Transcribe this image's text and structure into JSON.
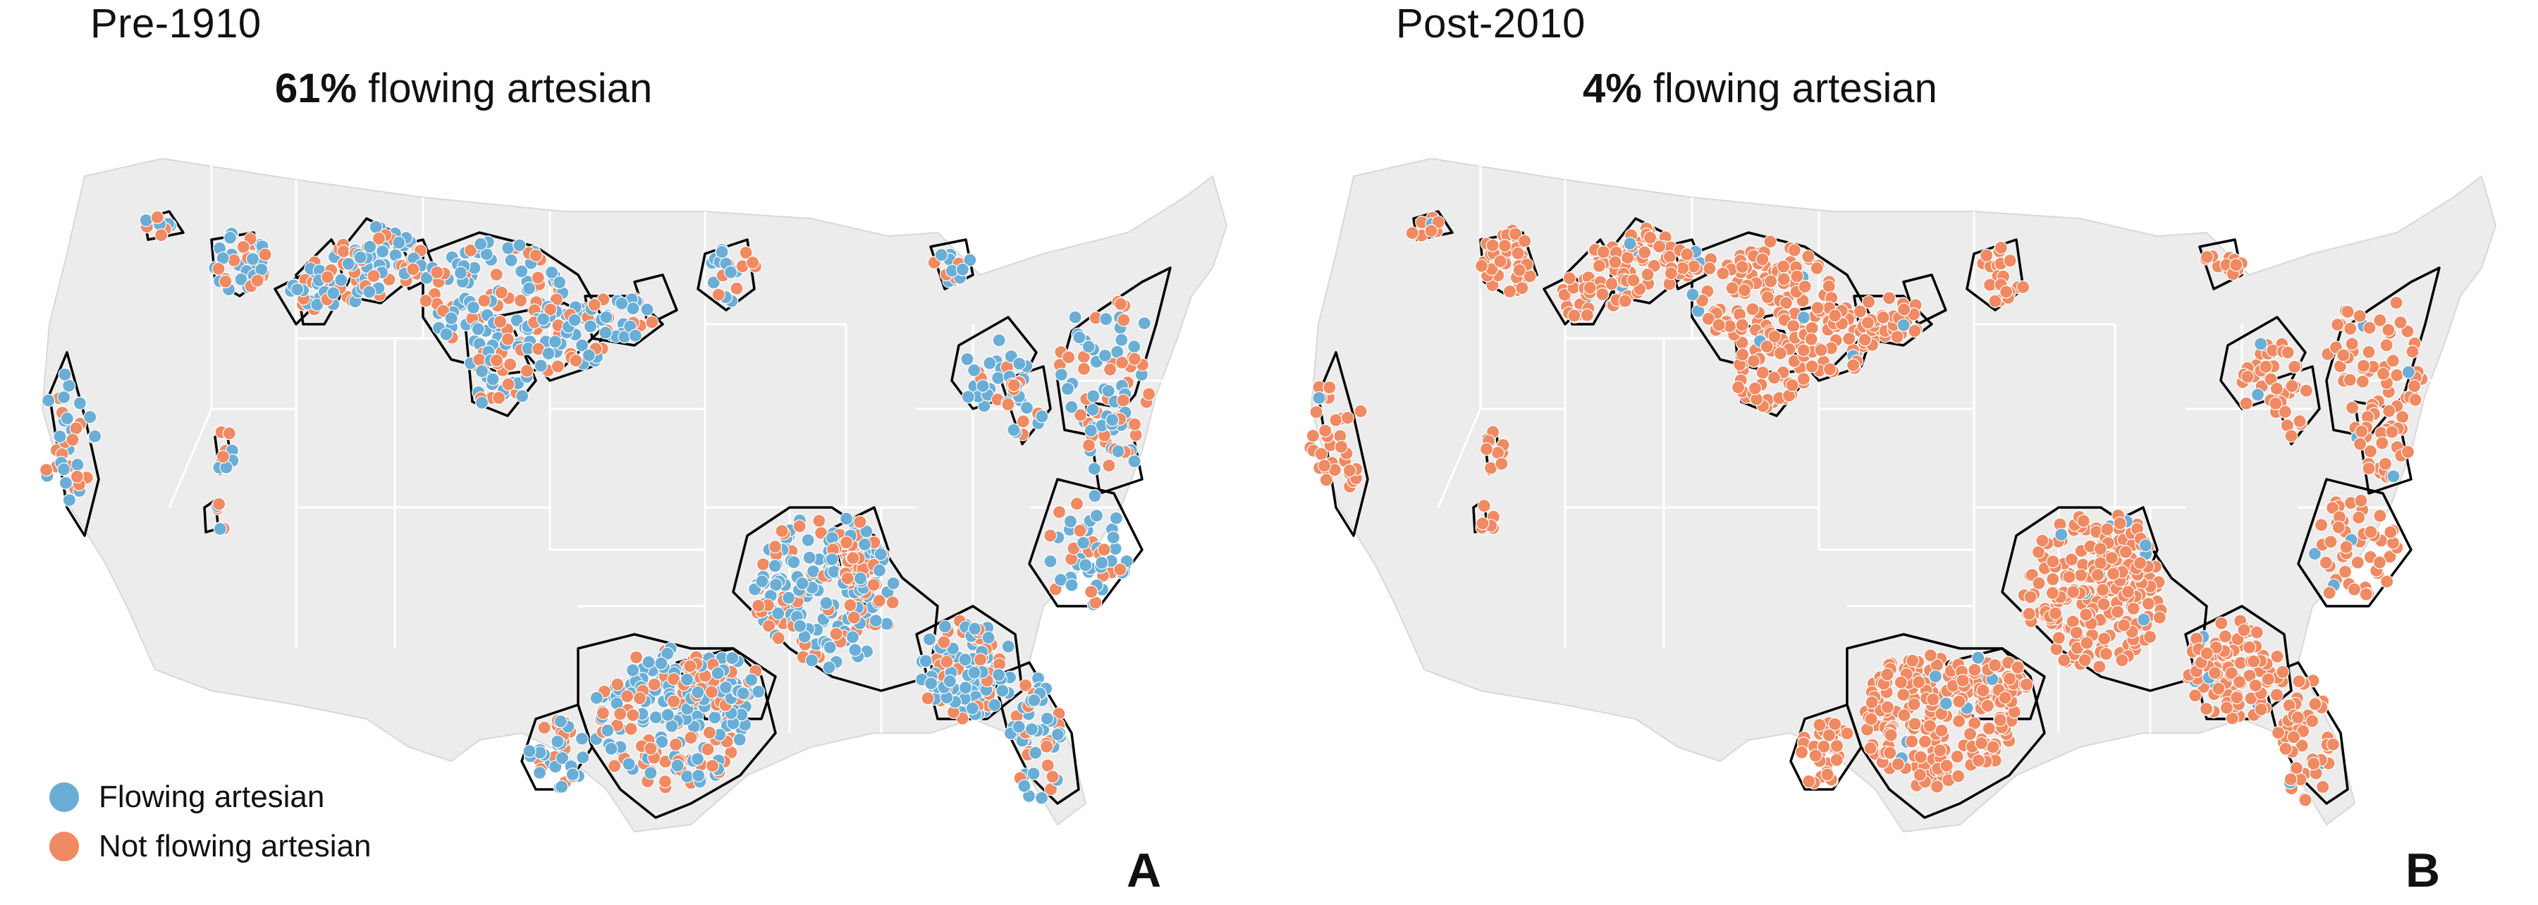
{
  "colors": {
    "flowing": "#6aaed6",
    "not_flowing": "#ef8a62",
    "land": "#ececec",
    "state_lines": "#ffffff",
    "aquifer_outline": "#000000"
  },
  "legend": {
    "flowing_label": "Flowing artesian",
    "not_flowing_label": "Not flowing artesian"
  },
  "panels": [
    {
      "era": "Pre-1910",
      "percent": "61%",
      "title_rest": " flowing artesian",
      "letter": "A",
      "flowing_share": 0.61
    },
    {
      "era": "Post-2010",
      "percent": "4%",
      "title_rest": " flowing artesian",
      "letter": "B",
      "flowing_share": 0.04
    }
  ]
}
